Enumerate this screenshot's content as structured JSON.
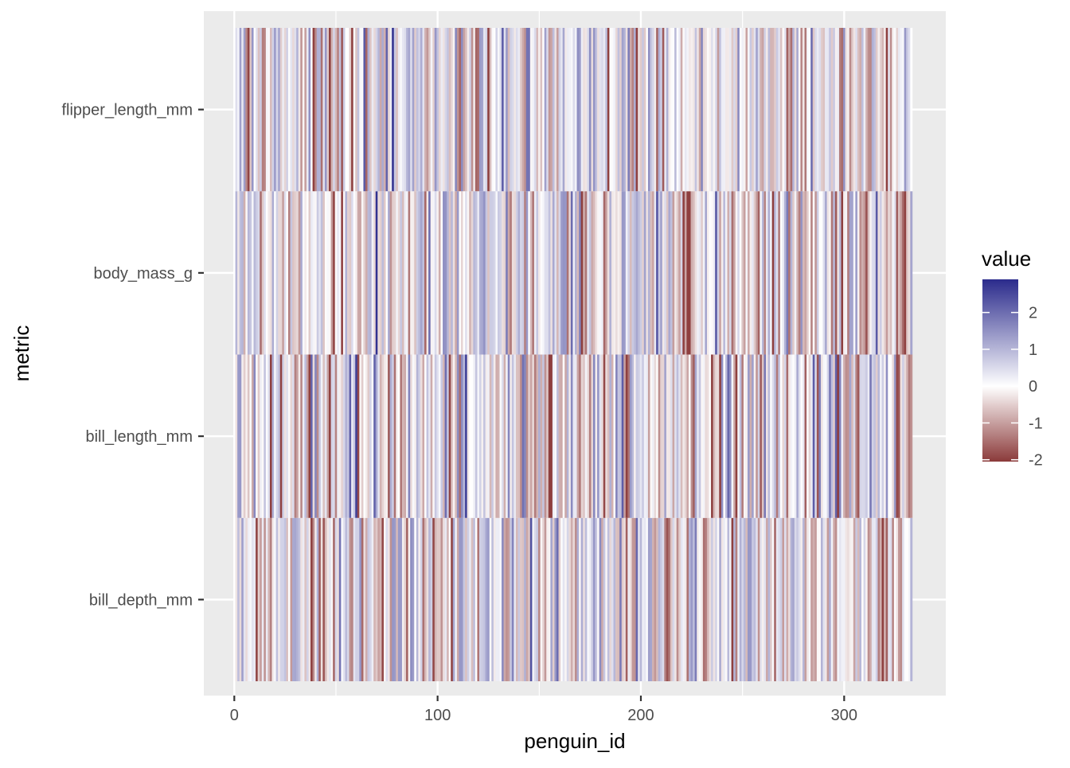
{
  "chart_data": {
    "type": "heatmap",
    "title": "",
    "xlabel": "penguin_id",
    "ylabel": "metric",
    "x_range": [
      1,
      333
    ],
    "xlim": [
      -15,
      350
    ],
    "x_ticks": [
      0,
      100,
      200,
      300
    ],
    "x_tick_labels": [
      "0",
      "100",
      "200",
      "300"
    ],
    "y_categories": [
      "bill_depth_mm",
      "bill_length_mm",
      "body_mass_g",
      "flipper_length_mm"
    ],
    "legend": {
      "title": "value",
      "placement": "right",
      "min": -2.05,
      "max": 2.9,
      "ticks": [
        2,
        1,
        0,
        -1,
        -2
      ],
      "tick_labels": [
        "2",
        "1",
        "0",
        "-1",
        "-2"
      ]
    },
    "colors": {
      "low": "#8b3a3a",
      "mid": "#ffffff",
      "high": "#2b2b8c",
      "panel_background": "#ebebeb",
      "grid": "#ffffff"
    },
    "grid": true
  }
}
